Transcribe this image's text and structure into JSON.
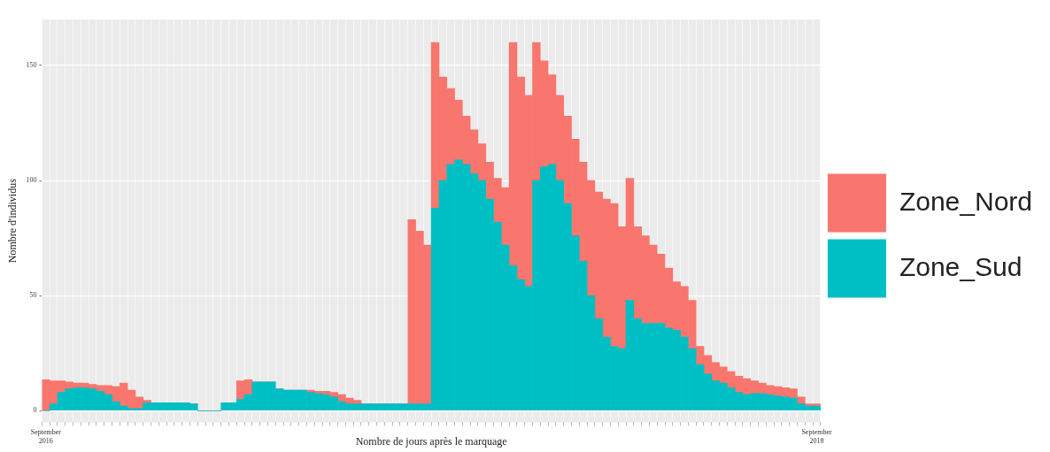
{
  "chart_data": {
    "type": "bar",
    "stacked": true,
    "xlabel": "Nombre de jours après le marquage",
    "ylabel": "Nombre d'individus",
    "categories": [
      "September 2016",
      null,
      null,
      null,
      null,
      null,
      null,
      null,
      null,
      null,
      null,
      null,
      null,
      null,
      null,
      null,
      null,
      null,
      null,
      null,
      null,
      null,
      null,
      null,
      null,
      null,
      null,
      null,
      null,
      null,
      null,
      null,
      null,
      null,
      null,
      null,
      null,
      null,
      null,
      null,
      null,
      null,
      null,
      null,
      null,
      null,
      null,
      null,
      null,
      null,
      null,
      null,
      null,
      null,
      null,
      null,
      null,
      null,
      null,
      null,
      null,
      null,
      null,
      null,
      null,
      null,
      null,
      null,
      null,
      null,
      null,
      null,
      null,
      null,
      null,
      null,
      null,
      null,
      null,
      null,
      null,
      null,
      null,
      null,
      null,
      null,
      null,
      null,
      null,
      null,
      null,
      null,
      null,
      null,
      null,
      null,
      null,
      null,
      null,
      "September 2018"
    ],
    "series": [
      {
        "name": "Zone_Sud",
        "color": "#00bfc4",
        "values": [
          0,
          3,
          8,
          9.5,
          10,
          10,
          9.5,
          8.5,
          7,
          4,
          2,
          1,
          1,
          3.5,
          3.5,
          3.5,
          3.5,
          3.5,
          3.5,
          3,
          0,
          0,
          0,
          3.5,
          3.5,
          5,
          7,
          12.5,
          12.5,
          12.5,
          9.5,
          9,
          9,
          9,
          8,
          7.5,
          7,
          6,
          4,
          3,
          3,
          3,
          3,
          3,
          3,
          3,
          3,
          3,
          3,
          3,
          88,
          100,
          107,
          109,
          107,
          103,
          100,
          92,
          82,
          72,
          63,
          57,
          54,
          100,
          106,
          107,
          100,
          90,
          76,
          65,
          50,
          40,
          32,
          28,
          27,
          48,
          40,
          38,
          38,
          38,
          36,
          35,
          32,
          27,
          20,
          16,
          13,
          12,
          10,
          8,
          7,
          7.5,
          7.5,
          7,
          6.5,
          6,
          5.5,
          3,
          2,
          2
        ]
      },
      {
        "name": "Zone_Nord",
        "color": "#f8766d",
        "values": [
          13.5,
          10,
          5,
          3,
          2,
          2,
          2,
          2.5,
          4,
          6.5,
          10,
          8,
          5,
          1,
          0,
          0,
          0,
          0,
          0,
          0,
          0,
          0,
          0,
          0,
          0,
          8,
          6.5,
          0,
          0,
          0,
          0,
          0,
          0,
          0,
          1,
          1,
          1.5,
          2,
          3,
          2.5,
          1.5,
          0,
          0,
          0,
          0,
          0,
          0,
          80,
          75,
          69,
          72,
          45,
          33,
          26,
          21,
          19,
          16,
          16,
          19,
          25,
          97,
          88,
          83,
          60,
          46,
          39,
          37,
          38,
          42,
          43,
          50,
          55,
          60,
          62,
          53,
          53,
          40,
          38,
          34,
          30,
          26,
          21,
          22,
          21,
          8,
          8,
          8,
          7,
          7,
          7,
          7,
          5.5,
          4.5,
          4,
          4,
          4,
          4,
          3,
          1,
          1
        ]
      }
    ],
    "ylim": [
      -5,
      170
    ],
    "yticks": [
      0,
      50,
      100,
      150
    ],
    "grid": true,
    "legend": "right"
  }
}
